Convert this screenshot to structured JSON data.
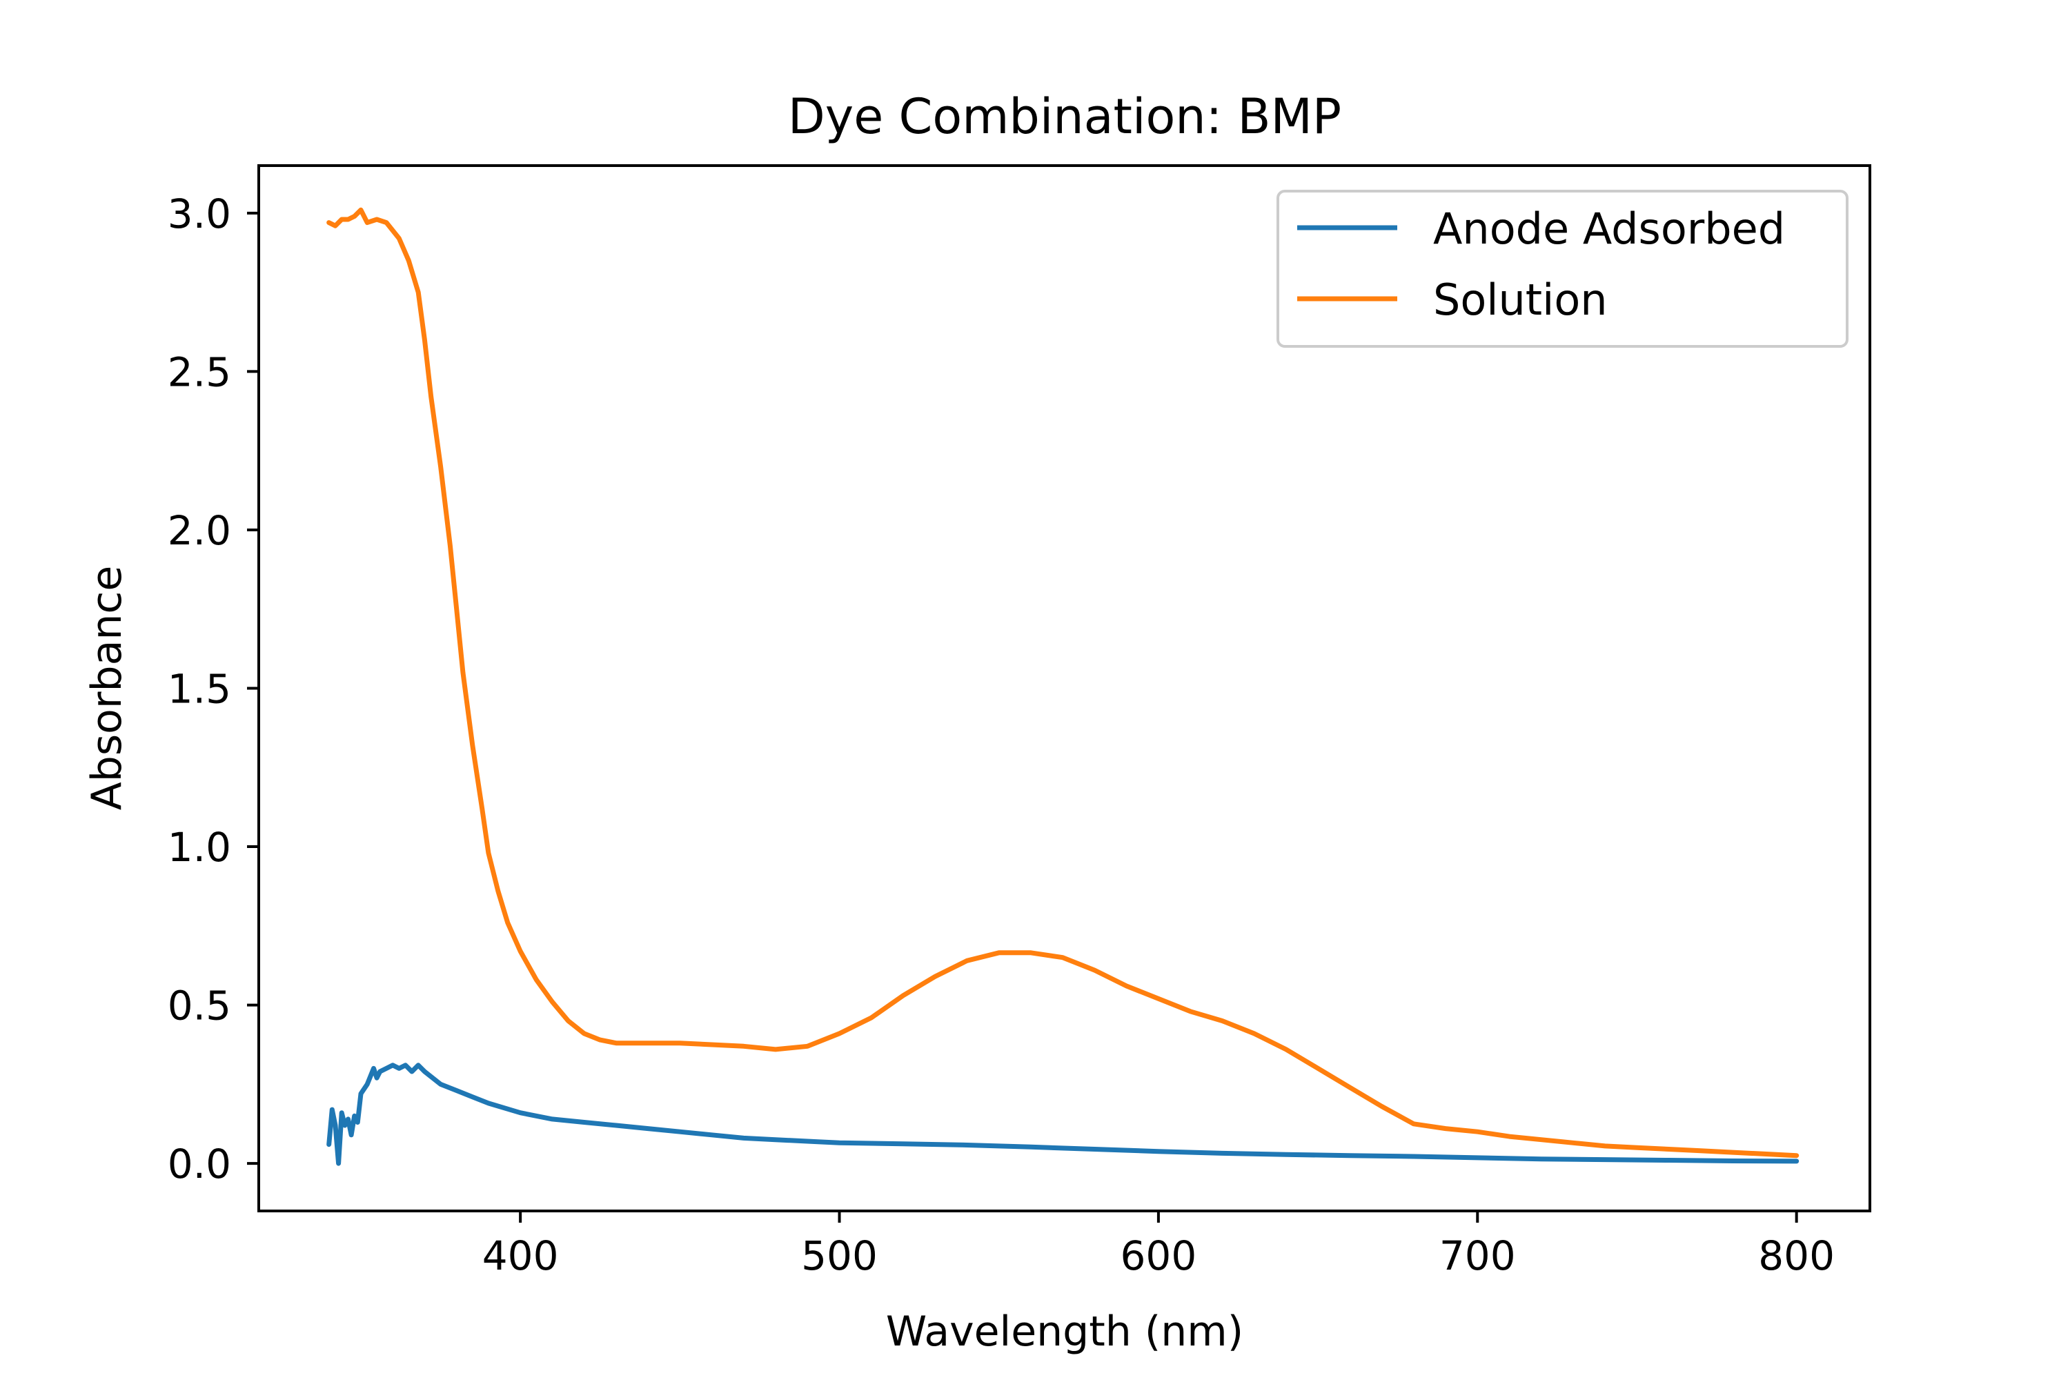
{
  "chart_data": {
    "type": "line",
    "title": "Dye Combination: BMP",
    "xlabel": "Wavelength (nm)",
    "ylabel": "Absorbance",
    "xlim": [
      318,
      823
    ],
    "ylim": [
      -0.15,
      3.15
    ],
    "x_ticks": [
      400,
      500,
      600,
      700,
      800
    ],
    "y_ticks": [
      0.0,
      0.5,
      1.0,
      1.5,
      2.0,
      2.5,
      3.0
    ],
    "x_tick_labels": [
      "400",
      "500",
      "600",
      "700",
      "800"
    ],
    "y_tick_labels": [
      "0.0",
      "0.5",
      "1.0",
      "1.5",
      "2.0",
      "2.5",
      "3.0"
    ],
    "grid": false,
    "legend_position": "top-right",
    "series": [
      {
        "name": "Anode Adsorbed",
        "color": "#1f77b4",
        "points": [
          [
            340,
            0.06
          ],
          [
            341,
            0.17
          ],
          [
            342,
            0.12
          ],
          [
            343,
            0.0
          ],
          [
            344,
            0.16
          ],
          [
            345,
            0.12
          ],
          [
            346,
            0.14
          ],
          [
            347,
            0.09
          ],
          [
            348,
            0.15
          ],
          [
            349,
            0.13
          ],
          [
            350,
            0.22
          ],
          [
            352,
            0.25
          ],
          [
            354,
            0.3
          ],
          [
            355,
            0.27
          ],
          [
            356,
            0.29
          ],
          [
            358,
            0.3
          ],
          [
            360,
            0.31
          ],
          [
            362,
            0.3
          ],
          [
            364,
            0.31
          ],
          [
            366,
            0.29
          ],
          [
            368,
            0.31
          ],
          [
            370,
            0.29
          ],
          [
            375,
            0.25
          ],
          [
            380,
            0.23
          ],
          [
            385,
            0.21
          ],
          [
            390,
            0.19
          ],
          [
            400,
            0.16
          ],
          [
            410,
            0.14
          ],
          [
            420,
            0.13
          ],
          [
            430,
            0.12
          ],
          [
            440,
            0.11
          ],
          [
            450,
            0.1
          ],
          [
            460,
            0.09
          ],
          [
            470,
            0.08
          ],
          [
            480,
            0.075
          ],
          [
            490,
            0.07
          ],
          [
            500,
            0.065
          ],
          [
            520,
            0.062
          ],
          [
            540,
            0.058
          ],
          [
            560,
            0.052
          ],
          [
            580,
            0.045
          ],
          [
            600,
            0.038
          ],
          [
            620,
            0.032
          ],
          [
            640,
            0.028
          ],
          [
            660,
            0.025
          ],
          [
            680,
            0.022
          ],
          [
            700,
            0.018
          ],
          [
            720,
            0.014
          ],
          [
            740,
            0.012
          ],
          [
            760,
            0.01
          ],
          [
            780,
            0.008
          ],
          [
            800,
            0.007
          ]
        ]
      },
      {
        "name": "Solution",
        "color": "#ff7f0e",
        "points": [
          [
            340,
            2.97
          ],
          [
            342,
            2.96
          ],
          [
            344,
            2.98
          ],
          [
            346,
            2.98
          ],
          [
            348,
            2.99
          ],
          [
            350,
            3.01
          ],
          [
            352,
            2.97
          ],
          [
            355,
            2.98
          ],
          [
            358,
            2.97
          ],
          [
            362,
            2.92
          ],
          [
            365,
            2.85
          ],
          [
            368,
            2.75
          ],
          [
            370,
            2.6
          ],
          [
            372,
            2.42
          ],
          [
            375,
            2.2
          ],
          [
            378,
            1.95
          ],
          [
            380,
            1.75
          ],
          [
            382,
            1.55
          ],
          [
            385,
            1.32
          ],
          [
            388,
            1.12
          ],
          [
            390,
            0.98
          ],
          [
            393,
            0.86
          ],
          [
            396,
            0.76
          ],
          [
            400,
            0.67
          ],
          [
            405,
            0.58
          ],
          [
            410,
            0.51
          ],
          [
            415,
            0.45
          ],
          [
            420,
            0.41
          ],
          [
            425,
            0.39
          ],
          [
            430,
            0.38
          ],
          [
            440,
            0.38
          ],
          [
            450,
            0.38
          ],
          [
            460,
            0.375
          ],
          [
            470,
            0.37
          ],
          [
            480,
            0.36
          ],
          [
            490,
            0.37
          ],
          [
            500,
            0.41
          ],
          [
            510,
            0.46
          ],
          [
            520,
            0.53
          ],
          [
            530,
            0.59
          ],
          [
            540,
            0.64
          ],
          [
            550,
            0.665
          ],
          [
            560,
            0.665
          ],
          [
            570,
            0.65
          ],
          [
            580,
            0.61
          ],
          [
            590,
            0.56
          ],
          [
            600,
            0.52
          ],
          [
            610,
            0.48
          ],
          [
            620,
            0.45
          ],
          [
            630,
            0.41
          ],
          [
            640,
            0.36
          ],
          [
            650,
            0.3
          ],
          [
            660,
            0.24
          ],
          [
            670,
            0.18
          ],
          [
            680,
            0.125
          ],
          [
            690,
            0.11
          ],
          [
            700,
            0.1
          ],
          [
            710,
            0.085
          ],
          [
            720,
            0.075
          ],
          [
            730,
            0.065
          ],
          [
            740,
            0.055
          ],
          [
            750,
            0.05
          ],
          [
            760,
            0.045
          ],
          [
            770,
            0.04
          ],
          [
            780,
            0.035
          ],
          [
            790,
            0.03
          ],
          [
            800,
            0.025
          ]
        ]
      }
    ]
  }
}
